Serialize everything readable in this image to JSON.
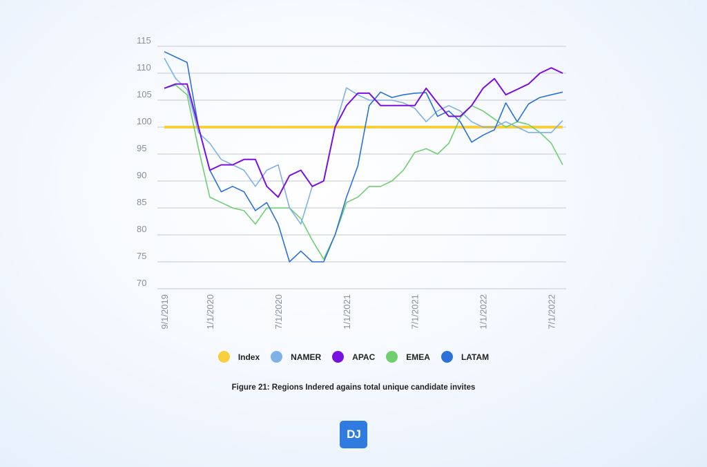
{
  "chart_data": {
    "type": "line",
    "title": "",
    "caption": "Figure 21: Regions Indered agains total unique candidate invites",
    "xlabel": "",
    "ylabel": "",
    "ylim": [
      70,
      115
    ],
    "yticks": [
      "70",
      "75",
      "80",
      "85",
      "90",
      "95",
      "100",
      "105",
      "110",
      "115"
    ],
    "grid": true,
    "legend_position": "bottom",
    "x": [
      "9/1/2019",
      "10/1/2019",
      "11/1/2019",
      "12/1/2019",
      "1/1/2020",
      "2/1/2020",
      "3/1/2020",
      "4/1/2020",
      "5/1/2020",
      "6/1/2020",
      "7/1/2020",
      "8/1/2020",
      "9/1/2020",
      "10/1/2020",
      "11/1/2020",
      "12/1/2020",
      "1/1/2021",
      "2/1/2021",
      "3/1/2021",
      "4/1/2021",
      "5/1/2021",
      "6/1/2021",
      "7/1/2021",
      "8/1/2021",
      "9/1/2021",
      "10/1/2021",
      "11/1/2021",
      "12/1/2021",
      "1/1/2022",
      "2/1/2022",
      "3/1/2022",
      "4/1/2022",
      "5/1/2022",
      "6/1/2022",
      "7/1/2022",
      "8/1/2022"
    ],
    "xtick_labels": [
      {
        "index": 0,
        "label": "9/1/2019"
      },
      {
        "index": 4,
        "label": "1/1/2020"
      },
      {
        "index": 10,
        "label": "7/1/2020"
      },
      {
        "index": 16,
        "label": "1/1/2021"
      },
      {
        "index": 22,
        "label": "7/1/2021"
      },
      {
        "index": 28,
        "label": "1/1/2022"
      },
      {
        "index": 34,
        "label": "7/1/2022"
      }
    ],
    "series": [
      {
        "name": "Index",
        "color": "#f9cf3c",
        "values": [
          100,
          100,
          100,
          100,
          100,
          100,
          100,
          100,
          100,
          100,
          100,
          100,
          100,
          100,
          100,
          100,
          100,
          100,
          100,
          100,
          100,
          100,
          100,
          100,
          100,
          100,
          100,
          100,
          100,
          100,
          100,
          100,
          100,
          100,
          100,
          100
        ]
      },
      {
        "name": "NAMER",
        "color": "#7fb0e6",
        "values": [
          112.8,
          109,
          107,
          99,
          97,
          94,
          93,
          92,
          89,
          92,
          93,
          85,
          82,
          89,
          90,
          100,
          107.3,
          106,
          105,
          105,
          105,
          104.5,
          103.5,
          101,
          103,
          104,
          103,
          101,
          100,
          100,
          101,
          100,
          99,
          99,
          99,
          101.2
        ]
      },
      {
        "name": "APAC",
        "color": "#7a10e0",
        "values": [
          107.2,
          108,
          108,
          100,
          92,
          93,
          93,
          94,
          94,
          89,
          87,
          91,
          92,
          89,
          90,
          100,
          104,
          106.3,
          106.3,
          104,
          104,
          104,
          104,
          107.2,
          104.5,
          102,
          102,
          104,
          107.2,
          109,
          106,
          107,
          108,
          110,
          111,
          110
        ]
      },
      {
        "name": "EMEA",
        "color": "#6fcf6f",
        "values": [
          107.2,
          107.8,
          106,
          96,
          87,
          86,
          85,
          84.5,
          82,
          85,
          85,
          85,
          83,
          79,
          75.5,
          80,
          86,
          87,
          89,
          89,
          90,
          92,
          95.3,
          96,
          95,
          97,
          101.7,
          104,
          103,
          101.5,
          100,
          101,
          100.5,
          99,
          97,
          93
        ]
      },
      {
        "name": "LATAM",
        "color": "#2a72d8",
        "values": [
          114,
          113,
          112,
          100,
          92,
          88,
          89,
          88,
          84.5,
          86,
          82,
          75,
          77,
          75,
          75,
          80,
          87,
          92.8,
          104,
          106.5,
          105.5,
          106,
          106.3,
          106.4,
          102,
          103,
          101,
          97.2,
          98.5,
          99.5,
          104.5,
          101,
          104.3,
          105.5,
          106,
          106.5
        ]
      }
    ]
  },
  "logo": {
    "text": "DJ"
  }
}
